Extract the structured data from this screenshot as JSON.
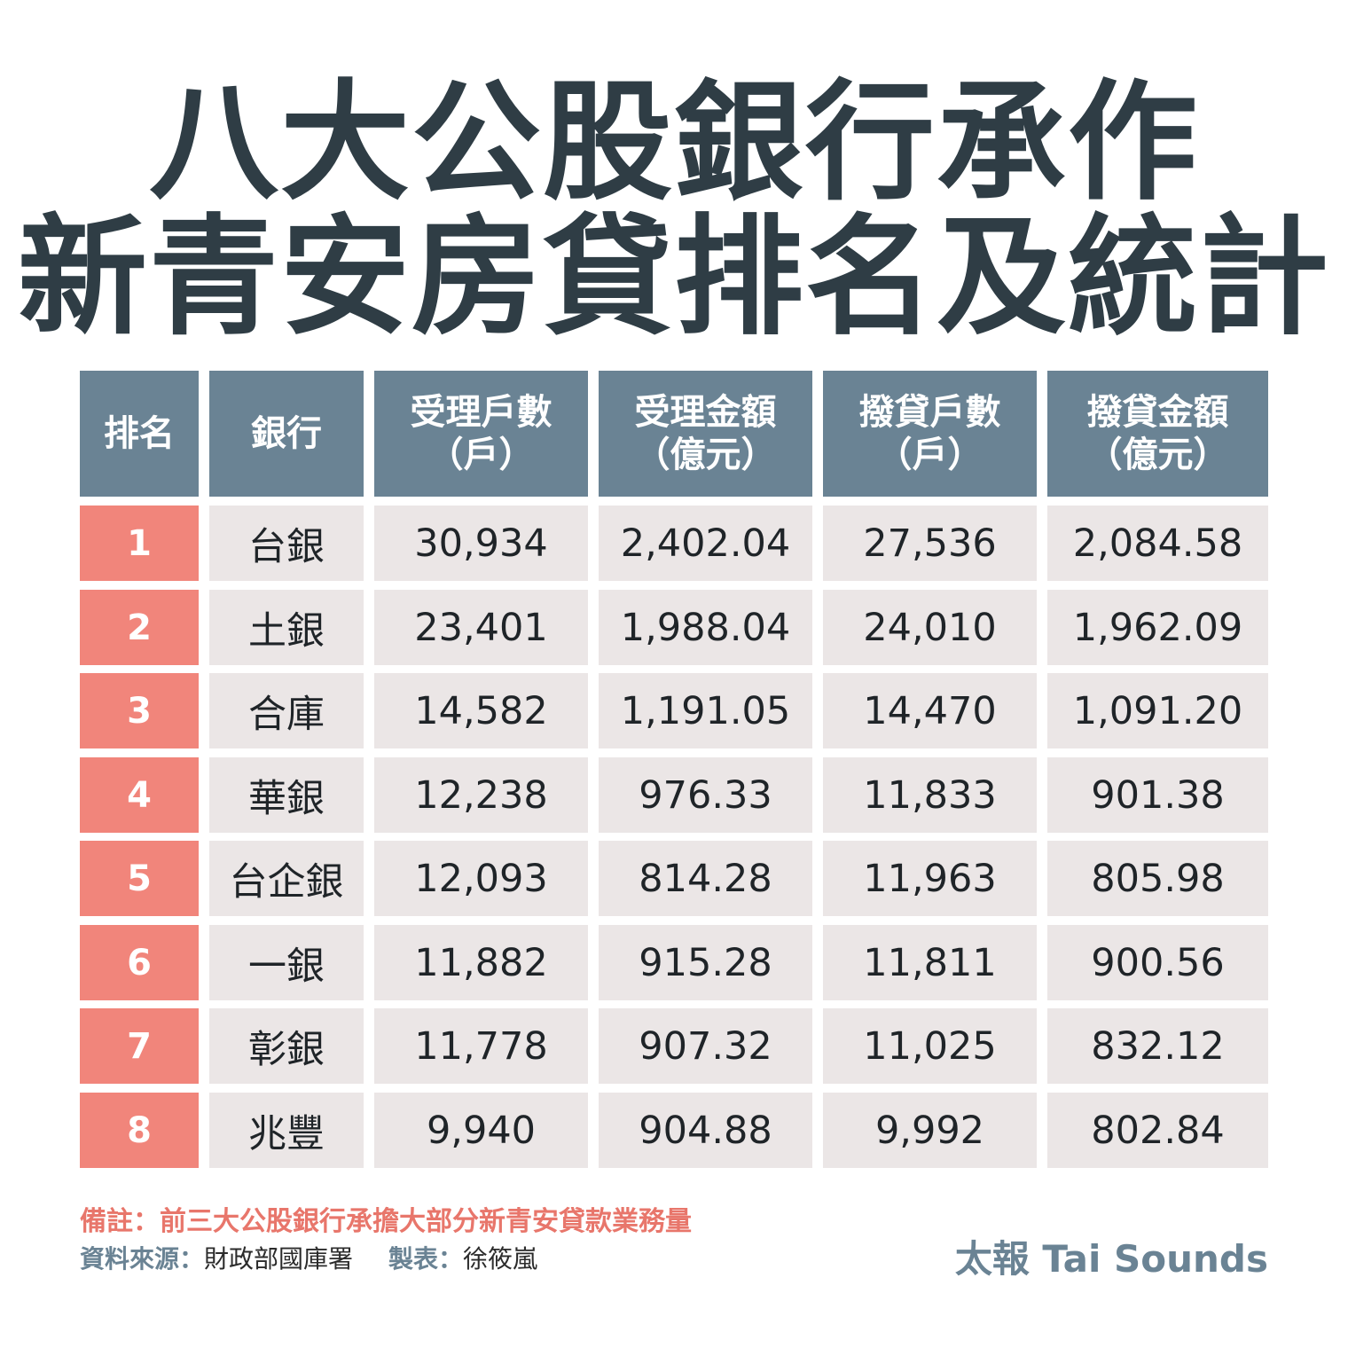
{
  "title": {
    "line1": "八大公股銀行承作",
    "line2": "新青安房貸排名及統計"
  },
  "chart_data": {
    "type": "table",
    "columns": [
      {
        "line1": "排名",
        "line2": ""
      },
      {
        "line1": "銀行",
        "line2": ""
      },
      {
        "line1": "受理戶數",
        "line2": "（戶）"
      },
      {
        "line1": "受理金額",
        "line2": "（億元）"
      },
      {
        "line1": "撥貸戶數",
        "line2": "（戶）"
      },
      {
        "line1": "撥貸金額",
        "line2": "（億元）"
      }
    ],
    "rows": [
      [
        "1",
        "台銀",
        "30,934",
        "2,402.04",
        "27,536",
        "2,084.58"
      ],
      [
        "2",
        "土銀",
        "23,401",
        "1,988.04",
        "24,010",
        "1,962.09"
      ],
      [
        "3",
        "合庫",
        "14,582",
        "1,191.05",
        "14,470",
        "1,091.20"
      ],
      [
        "4",
        "華銀",
        "12,238",
        "976.33",
        "11,833",
        "901.38"
      ],
      [
        "5",
        "台企銀",
        "12,093",
        "814.28",
        "11,963",
        "805.98"
      ],
      [
        "6",
        "一銀",
        "11,882",
        "915.28",
        "11,811",
        "900.56"
      ],
      [
        "7",
        "彰銀",
        "11,778",
        "907.32",
        "11,025",
        "832.12"
      ],
      [
        "8",
        "兆豐",
        "9,940",
        "904.88",
        "9,992",
        "802.84"
      ]
    ]
  },
  "footer": {
    "note": "備註：前三大公股銀行承擔大部分新青安貸款業務量",
    "source_label": "資料來源：",
    "source_value": "財政部國庫署",
    "author_label": "製表：",
    "author_value": "徐筱嵐",
    "brand": "太報 Tai Sounds"
  },
  "colors": {
    "title": "#2f3d45",
    "header_bg": "#6a8394",
    "rank_bg": "#f1857b",
    "cell_bg": "#ebe6e6",
    "note": "#e8766b"
  }
}
